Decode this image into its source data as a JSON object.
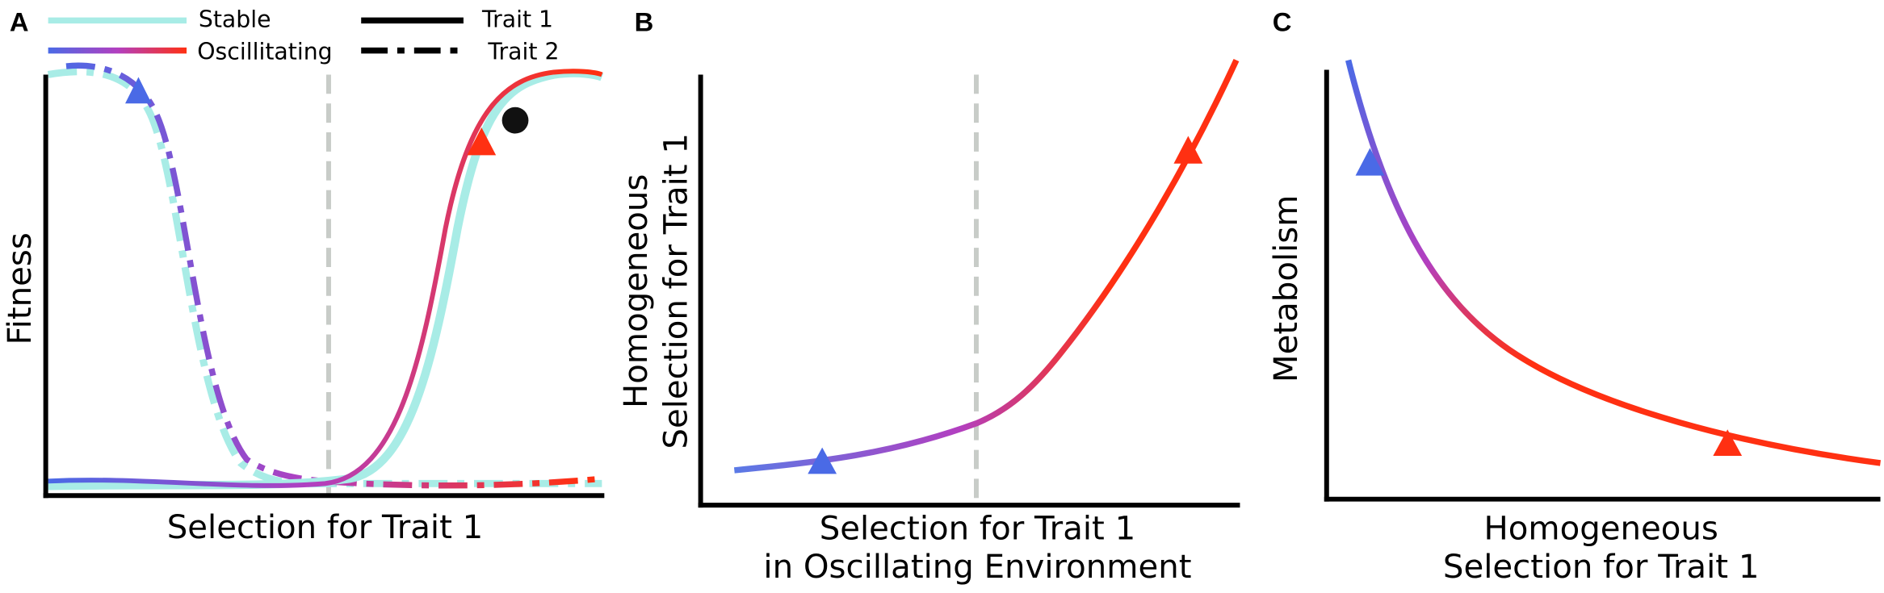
{
  "panel_a": {
    "label": "A",
    "legend": [
      "Stable",
      "Oscillitating",
      "Trait 1",
      "Trait 2"
    ],
    "y_label": "Fitness",
    "x_label": "Selection for Trait 1"
  },
  "panel_b": {
    "label": "B",
    "y_label": [
      "Homogeneous",
      "Selection for Trait 1"
    ],
    "x_label": [
      "Selection for Trait 1",
      "in Oscillating Environment"
    ]
  },
  "panel_c": {
    "label": "C",
    "y_label": "Metabolism",
    "x_label": [
      "Homogeneous",
      "Selection for Trait 1"
    ]
  }
}
